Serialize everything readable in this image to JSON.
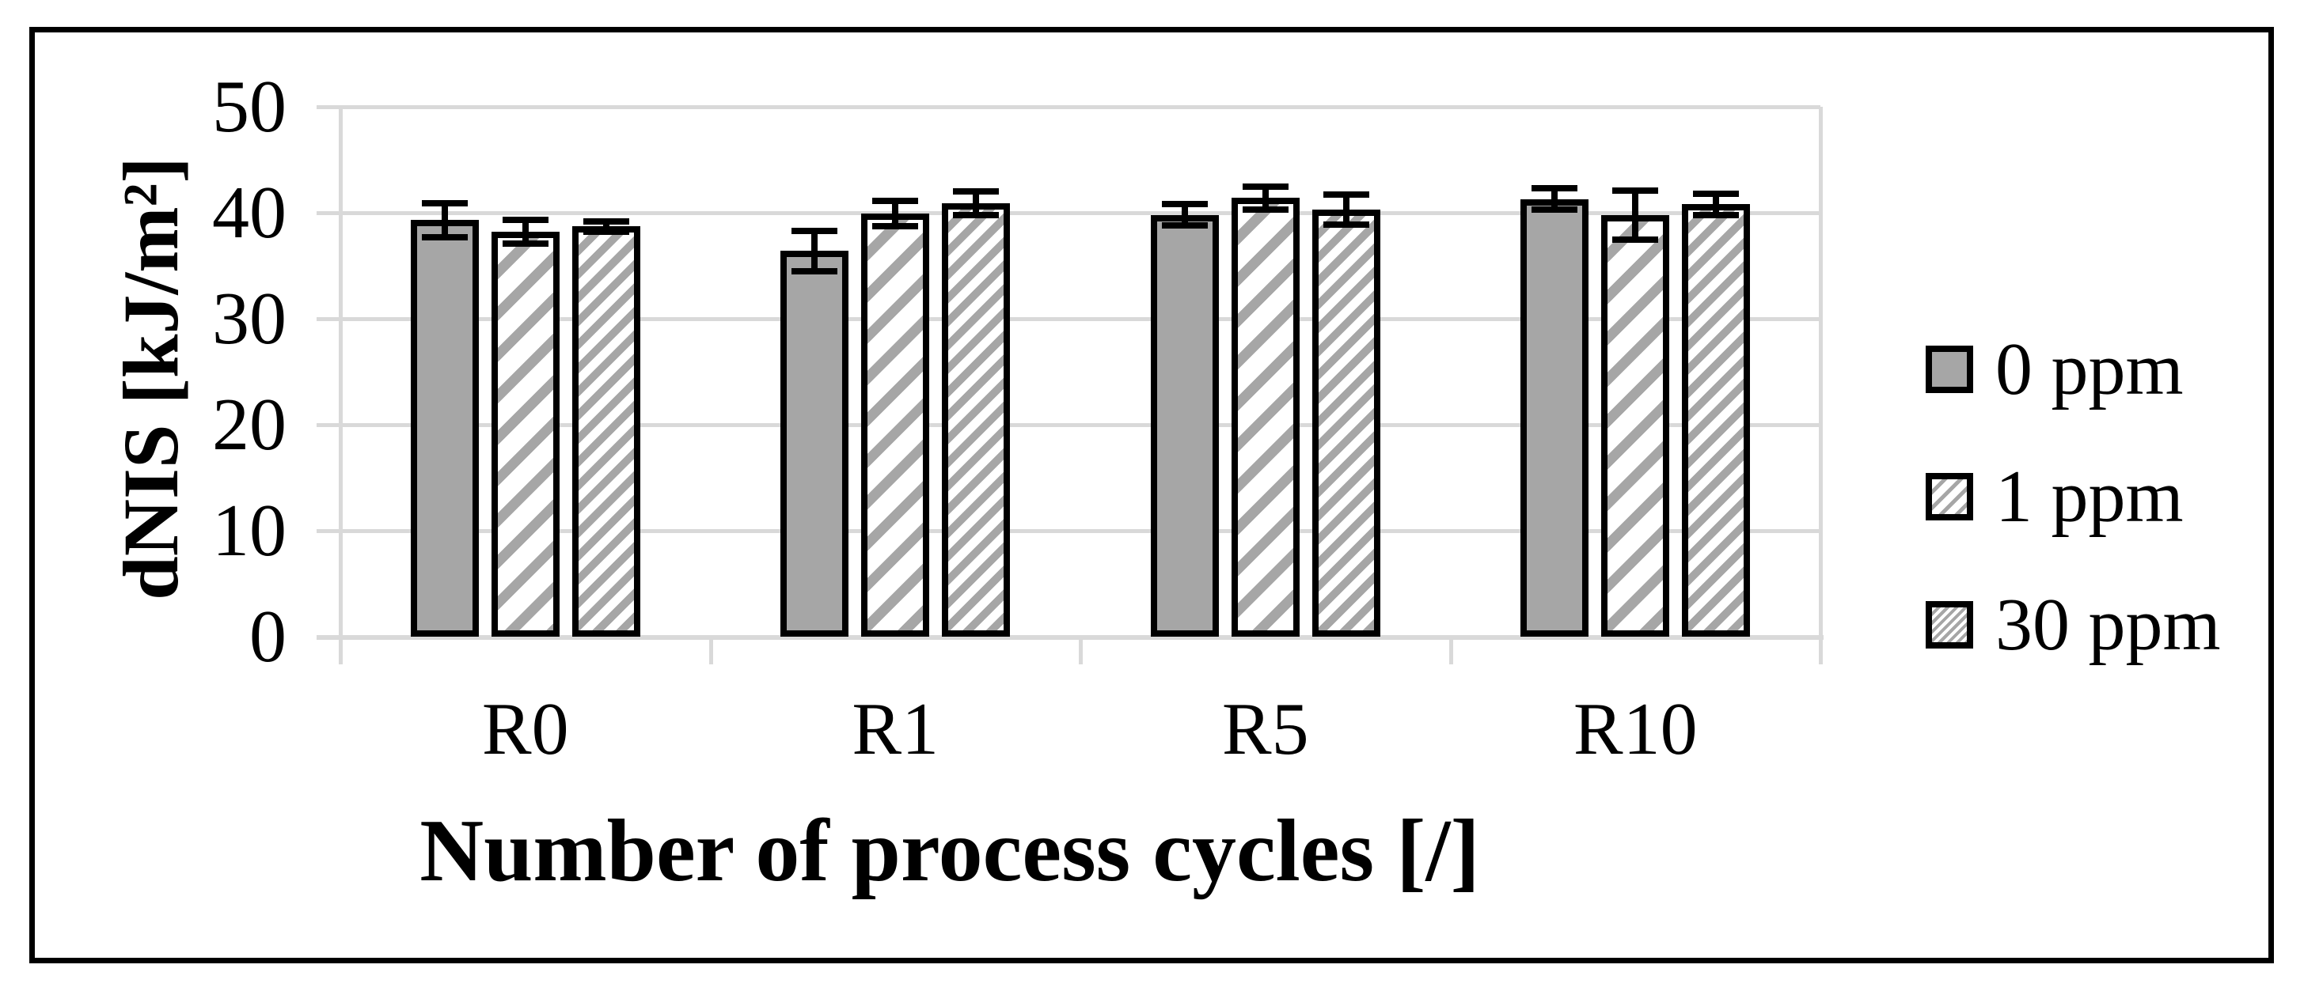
{
  "chart_data": {
    "type": "bar",
    "title": "",
    "xlabel": "Number of process cycles [/]",
    "ylabel": "dNIS [kJ/m²]",
    "categories": [
      "R0",
      "R1",
      "R5",
      "R10"
    ],
    "series": [
      {
        "name": "0 ppm",
        "pattern": "solid",
        "values": [
          39.3,
          36.4,
          39.8,
          41.3
        ],
        "errors": [
          1.6,
          1.9,
          1.0,
          1.0
        ]
      },
      {
        "name": "1 ppm",
        "pattern": "light-diagonal-hatch",
        "values": [
          38.2,
          39.9,
          41.4,
          39.8
        ],
        "errors": [
          1.1,
          1.2,
          1.1,
          2.3
        ]
      },
      {
        "name": "30 ppm",
        "pattern": "dense-diagonal-hatch",
        "values": [
          38.7,
          40.9,
          40.3,
          40.8
        ],
        "errors": [
          0.5,
          1.1,
          1.4,
          1.0
        ]
      }
    ],
    "ylim": [
      0,
      50
    ],
    "ytick_step": 10,
    "ytick_labels": [
      "0",
      "10",
      "20",
      "30",
      "40",
      "50"
    ],
    "grid": "horizontal",
    "legend_position": "right",
    "error_bars": true,
    "colors": {
      "bar_fill": "#a6a6a6",
      "bar_border": "#000000",
      "gridline": "#d9d9d9",
      "error_bar": "#000000",
      "text": "#000000",
      "frame": "#000000",
      "background": "#ffffff"
    }
  }
}
